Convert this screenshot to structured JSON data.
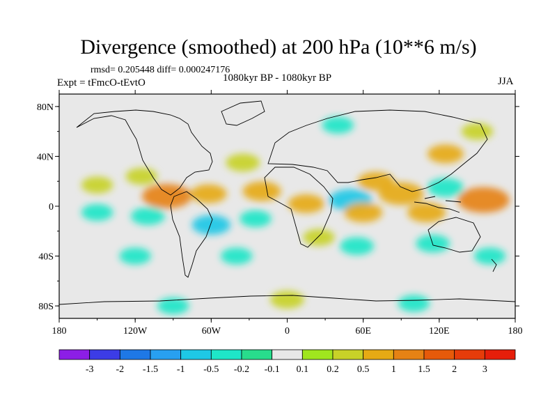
{
  "chart_data": {
    "type": "heatmap",
    "title": "Divergence (smoothed) at 200 hPa (10**6 m/s)",
    "stats_text": "rmsd= 0.205448 diff= 0.000247176",
    "left_label": "Expt = tFmcO-tEvtO",
    "center_label": "1080kyr BP - 1080kyr BP",
    "right_label": "JJA",
    "x_ticks": [
      "180",
      "120W",
      "60W",
      "0",
      "60E",
      "120E",
      "180"
    ],
    "x_tick_values": [
      -180,
      -120,
      -60,
      0,
      60,
      120,
      180
    ],
    "y_ticks": [
      "80N",
      "40N",
      "0",
      "40S",
      "80S"
    ],
    "y_tick_values": [
      80,
      40,
      0,
      -40,
      -80
    ],
    "xlim": [
      -180,
      180
    ],
    "ylim": [
      -90,
      90
    ],
    "colorbar": {
      "labels": [
        "-3",
        "-2",
        "-1.5",
        "-1",
        "-0.5",
        "-0.2",
        "-0.1",
        "0.1",
        "0.2",
        "0.5",
        "1",
        "1.5",
        "2",
        "3"
      ],
      "colors": [
        "#8c1ee6",
        "#3c3ce6",
        "#1e78e6",
        "#28a0f0",
        "#1ec8e6",
        "#1ee6c8",
        "#28dc8c",
        "#e8e8e8",
        "#a0e61e",
        "#c8d228",
        "#e6aa14",
        "#e68214",
        "#e65a0a",
        "#e63c0a",
        "#e61e0a"
      ]
    },
    "fields": [
      {
        "lon": -150,
        "lat": 17,
        "value": 0.3
      },
      {
        "lon": -115,
        "lat": 24,
        "value": 0.3
      },
      {
        "lon": -95,
        "lat": 8,
        "value": 1.1
      },
      {
        "lon": -62,
        "lat": 10,
        "value": 0.5
      },
      {
        "lon": -110,
        "lat": -8,
        "value": -0.4
      },
      {
        "lon": -150,
        "lat": -5,
        "value": -0.3
      },
      {
        "lon": -60,
        "lat": -15,
        "value": -0.6
      },
      {
        "lon": -25,
        "lat": -10,
        "value": -0.3
      },
      {
        "lon": -20,
        "lat": 12,
        "value": 0.6
      },
      {
        "lon": -35,
        "lat": 35,
        "value": 0.4
      },
      {
        "lon": -40,
        "lat": -40,
        "value": -0.3
      },
      {
        "lon": 15,
        "lat": 2,
        "value": 0.5
      },
      {
        "lon": 25,
        "lat": -25,
        "value": 0.3
      },
      {
        "lon": 50,
        "lat": 5,
        "value": -0.8
      },
      {
        "lon": 60,
        "lat": -5,
        "value": 0.6
      },
      {
        "lon": 55,
        "lat": -32,
        "value": -0.4
      },
      {
        "lon": 70,
        "lat": 20,
        "value": 0.5
      },
      {
        "lon": 90,
        "lat": 10,
        "value": 0.9
      },
      {
        "lon": 110,
        "lat": -5,
        "value": 0.6
      },
      {
        "lon": 125,
        "lat": 15,
        "value": -0.5
      },
      {
        "lon": 155,
        "lat": 5,
        "value": 1.2
      },
      {
        "lon": 125,
        "lat": 42,
        "value": 0.5
      },
      {
        "lon": 115,
        "lat": -30,
        "value": -0.4
      },
      {
        "lon": 160,
        "lat": -40,
        "value": -0.3
      },
      {
        "lon": -120,
        "lat": -40,
        "value": -0.3
      },
      {
        "lon": 40,
        "lat": 65,
        "value": -0.3
      },
      {
        "lon": 150,
        "lat": 60,
        "value": 0.3
      },
      {
        "lon": 0,
        "lat": -75,
        "value": 0.4
      },
      {
        "lon": 100,
        "lat": -78,
        "value": -0.3
      },
      {
        "lon": -90,
        "lat": -80,
        "value": -0.3
      }
    ]
  }
}
